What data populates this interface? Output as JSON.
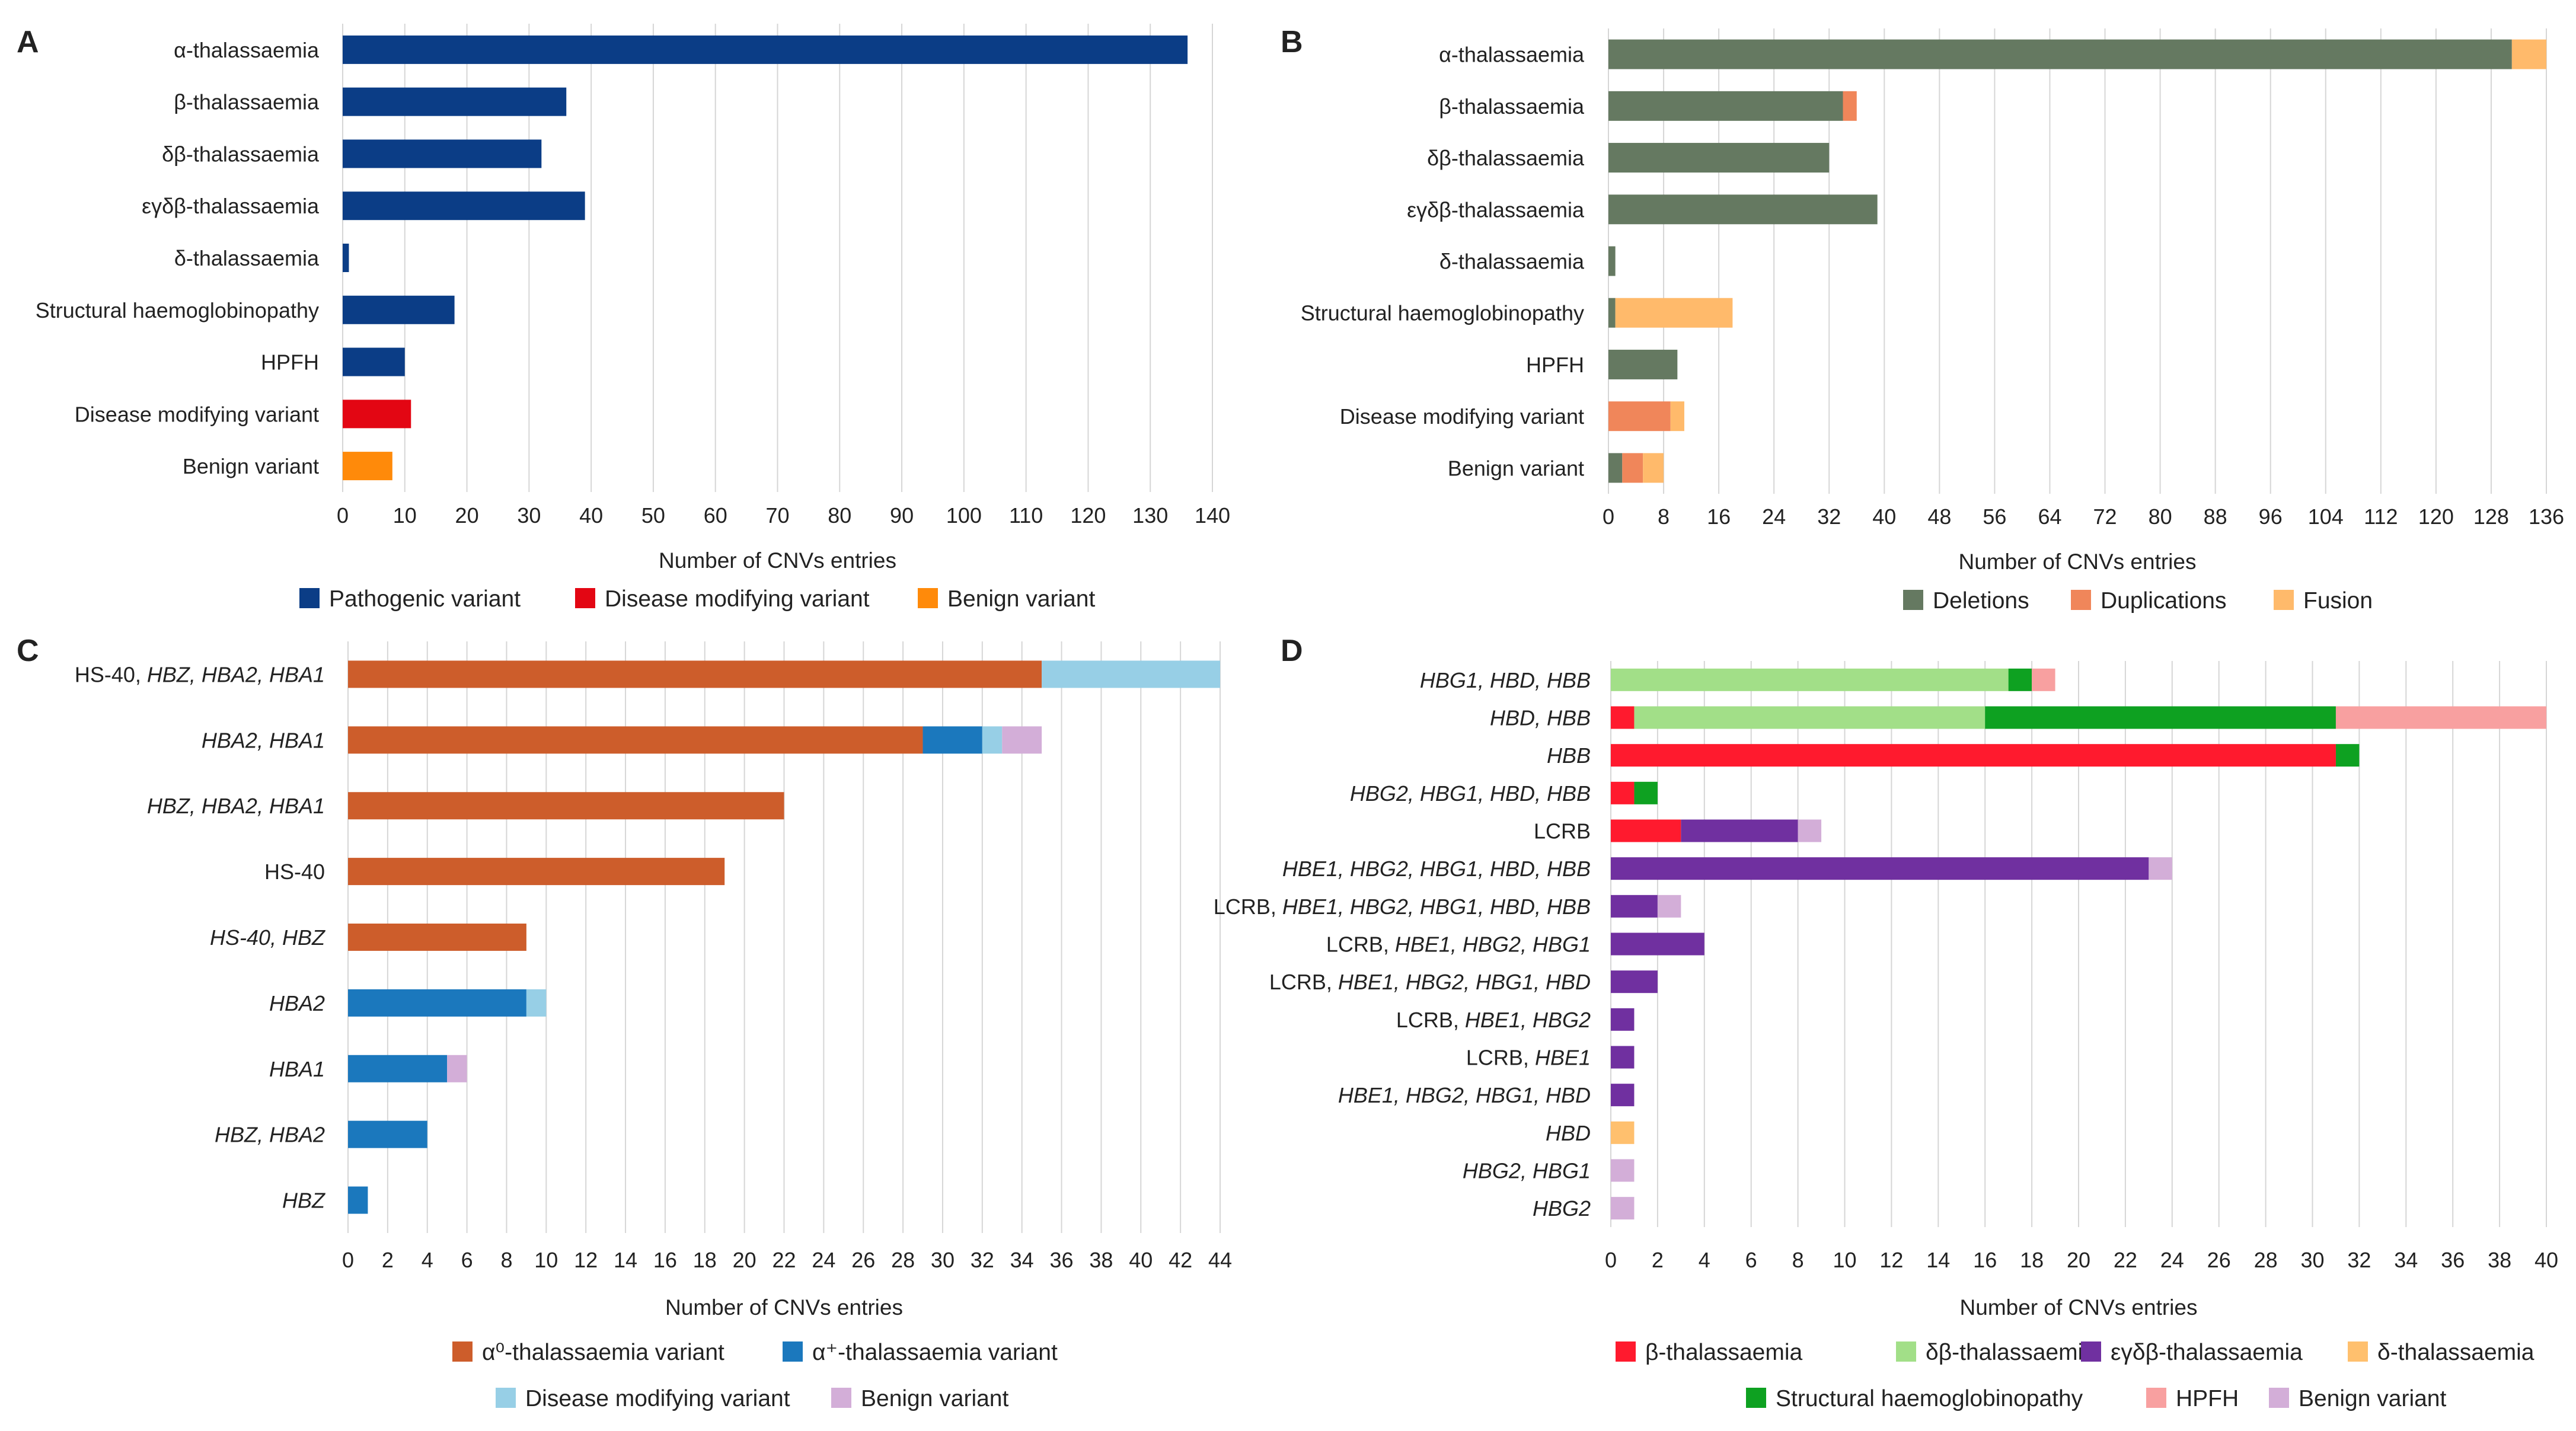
{
  "figure": {
    "panels": [
      "A",
      "B",
      "C",
      "D"
    ]
  },
  "chart_data": [
    {
      "panel": "A",
      "type": "bar",
      "orientation": "horizontal",
      "categories": [
        "α-thalassaemia",
        "β-thalassaemia",
        "δβ-thalassaemia",
        "εγδβ-thalassaemia",
        "δ-thalassaemia",
        "Structural haemoglobinopathy",
        "HPFH",
        "Disease modifying variant",
        "Benign variant"
      ],
      "series": [
        {
          "name": "Pathogenic variant",
          "color": "#0b3d86",
          "values": [
            136,
            36,
            32,
            39,
            1,
            18,
            10,
            0,
            0
          ]
        },
        {
          "name": "Disease modifying variant",
          "color": "#e30613",
          "values": [
            0,
            0,
            0,
            0,
            0,
            0,
            0,
            11,
            0
          ]
        },
        {
          "name": "Benign variant",
          "color": "#ff8a0a",
          "values": [
            0,
            0,
            0,
            0,
            0,
            0,
            0,
            0,
            8
          ]
        }
      ],
      "xlim": [
        0,
        140
      ],
      "xticks": [
        0,
        10,
        20,
        30,
        40,
        50,
        60,
        70,
        80,
        90,
        100,
        110,
        120,
        130,
        140
      ],
      "xlabel": "Number of CNVs entries",
      "legend_position": "bottom"
    },
    {
      "panel": "B",
      "type": "bar",
      "orientation": "horizontal",
      "stacked": true,
      "categories": [
        "α-thalassaemia",
        "β-thalassaemia",
        "δβ-thalassaemia",
        "εγδβ-thalassaemia",
        "δ-thalassaemia",
        "Structural haemoglobinopathy",
        "HPFH",
        "Disease modifying variant",
        "Benign variant"
      ],
      "series": [
        {
          "name": "Deletions",
          "color": "#657961",
          "values": [
            131,
            34,
            32,
            39,
            1,
            1,
            10,
            0,
            2
          ]
        },
        {
          "name": "Duplications",
          "color": "#f0865a",
          "values": [
            0,
            2,
            0,
            0,
            0,
            0,
            0,
            9,
            3
          ]
        },
        {
          "name": "Fusion",
          "color": "#ffba6b",
          "values": [
            5,
            0,
            0,
            0,
            0,
            17,
            0,
            2,
            3
          ]
        }
      ],
      "xlim": [
        0,
        136
      ],
      "xticks": [
        0,
        8,
        16,
        24,
        32,
        40,
        48,
        56,
        64,
        72,
        80,
        88,
        96,
        104,
        112,
        120,
        128,
        136
      ],
      "xlabel": "Number of CNVs entries",
      "legend_position": "bottom"
    },
    {
      "panel": "C",
      "type": "bar",
      "orientation": "horizontal",
      "stacked": true,
      "categories": [
        [
          {
            "t": "HS-40, ",
            "i": false
          },
          {
            "t": "HBZ, HBA2, HBA1",
            "i": true
          }
        ],
        [
          {
            "t": "HBA2, HBA1",
            "i": true
          }
        ],
        [
          {
            "t": "HBZ, HBA2, HBA1",
            "i": true
          }
        ],
        [
          {
            "t": "HS-40",
            "i": false
          }
        ],
        [
          {
            "t": "HS-40, HBZ",
            "i": true
          }
        ],
        [
          {
            "t": "HBA2",
            "i": true
          }
        ],
        [
          {
            "t": "HBA1",
            "i": true
          }
        ],
        [
          {
            "t": "HBZ, HBA2",
            "i": true
          }
        ],
        [
          {
            "t": "HBZ",
            "i": true
          }
        ]
      ],
      "series": [
        {
          "name": "α⁰-thalassaemia variant",
          "color": "#cd5d2b",
          "values": [
            35,
            29,
            22,
            19,
            9,
            0,
            0,
            0,
            0
          ]
        },
        {
          "name": "α⁺-thalassaemia variant",
          "color": "#1b78bd",
          "values": [
            0,
            3,
            0,
            0,
            0,
            9,
            5,
            4,
            1
          ]
        },
        {
          "name": "Disease modifying variant",
          "color": "#97cfe6",
          "values": [
            9,
            1,
            0,
            0,
            0,
            1,
            0,
            0,
            0
          ]
        },
        {
          "name": "Benign variant",
          "color": "#d3aed8",
          "values": [
            0,
            2,
            0,
            0,
            0,
            0,
            1,
            0,
            0
          ]
        }
      ],
      "xlim": [
        0,
        44
      ],
      "xticks": [
        0,
        2,
        4,
        6,
        8,
        10,
        12,
        14,
        16,
        18,
        20,
        22,
        24,
        26,
        28,
        30,
        32,
        34,
        36,
        38,
        40,
        42,
        44
      ],
      "xlabel": "Number of CNVs entries",
      "legend_position": "bottom"
    },
    {
      "panel": "D",
      "type": "bar",
      "orientation": "horizontal",
      "stacked": true,
      "categories": [
        [
          {
            "t": "HBG1, HBD, HBB",
            "i": true
          }
        ],
        [
          {
            "t": "HBD, HBB",
            "i": true
          }
        ],
        [
          {
            "t": "HBB",
            "i": true
          }
        ],
        [
          {
            "t": "HBG2, HBG1, HBD, HBB",
            "i": true
          }
        ],
        [
          {
            "t": "LCRB",
            "i": false
          }
        ],
        [
          {
            "t": "HBE1, HBG2, HBG1, HBD, HBB",
            "i": true
          }
        ],
        [
          {
            "t": "LCRB, ",
            "i": false
          },
          {
            "t": "HBE1, HBG2, HBG1, HBD, HBB",
            "i": true
          }
        ],
        [
          {
            "t": "LCRB, ",
            "i": false
          },
          {
            "t": "HBE1, HBG2, HBG1",
            "i": true
          }
        ],
        [
          {
            "t": "LCRB, ",
            "i": false
          },
          {
            "t": "HBE1, HBG2, HBG1, HBD",
            "i": true
          }
        ],
        [
          {
            "t": "LCRB, ",
            "i": false
          },
          {
            "t": "HBE1, HBG2",
            "i": true
          }
        ],
        [
          {
            "t": "LCRB, ",
            "i": false
          },
          {
            "t": "HBE1",
            "i": true
          }
        ],
        [
          {
            "t": "HBE1, HBG2, HBG1, HBD",
            "i": true
          }
        ],
        [
          {
            "t": "HBD",
            "i": true
          }
        ],
        [
          {
            "t": "HBG2, HBG1",
            "i": true
          }
        ],
        [
          {
            "t": "HBG2",
            "i": true
          }
        ]
      ],
      "series": [
        {
          "name": "β-thalassaemia",
          "color": "#ff1a2e",
          "values": [
            0,
            1,
            31,
            1,
            3,
            0,
            0,
            0,
            0,
            0,
            0,
            0,
            0,
            0,
            0
          ]
        },
        {
          "name": "δβ-thalassaemia",
          "color": "#a2df88",
          "values": [
            17,
            15,
            0,
            0,
            0,
            0,
            0,
            0,
            0,
            0,
            0,
            0,
            0,
            0,
            0
          ]
        },
        {
          "name": "εγδβ-thalassaemia",
          "color": "#7030a0",
          "values": [
            0,
            0,
            0,
            0,
            5,
            23,
            2,
            4,
            2,
            1,
            1,
            1,
            0,
            0,
            0
          ]
        },
        {
          "name": "δ-thalassaemia",
          "color": "#ffc06e",
          "values": [
            0,
            0,
            0,
            0,
            0,
            0,
            0,
            0,
            0,
            0,
            0,
            0,
            1,
            0,
            0
          ]
        },
        {
          "name": "Structural haemoglobinopathy",
          "color": "#0ea121",
          "values": [
            1,
            15,
            1,
            1,
            0,
            0,
            0,
            0,
            0,
            0,
            0,
            0,
            0,
            0,
            0
          ]
        },
        {
          "name": "HPFH",
          "color": "#f8a0a0",
          "values": [
            1,
            9,
            0,
            0,
            0,
            0,
            0,
            0,
            0,
            0,
            0,
            0,
            0,
            0,
            0
          ]
        },
        {
          "name": "Benign variant",
          "color": "#d3aed8",
          "values": [
            0,
            0,
            0,
            0,
            1,
            1,
            1,
            0,
            0,
            0,
            0,
            0,
            0,
            1,
            1
          ]
        }
      ],
      "xlim": [
        0,
        40
      ],
      "xticks": [
        0,
        2,
        4,
        6,
        8,
        10,
        12,
        14,
        16,
        18,
        20,
        22,
        24,
        26,
        28,
        30,
        32,
        34,
        36,
        38,
        40
      ],
      "xlabel": "Number of CNVs entries",
      "legend_position": "bottom"
    }
  ]
}
